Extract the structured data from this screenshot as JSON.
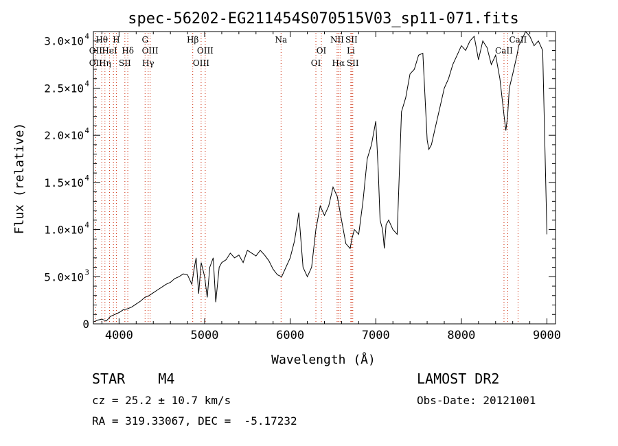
{
  "chart_data": {
    "type": "line",
    "title": "spec-56202-EG211454S070515V03_sp11-071.fits",
    "xlabel": "Wavelength (Å)",
    "ylabel": "Flux (relative)",
    "xlim": [
      3700,
      9100
    ],
    "ylim": [
      0,
      31000
    ],
    "x_ticks": [
      4000,
      5000,
      6000,
      7000,
      8000,
      9000
    ],
    "x_tick_labels": [
      "4000",
      "5000",
      "6000",
      "7000",
      "8000",
      "9000"
    ],
    "y_ticks": [
      {
        "value": 0,
        "mantissa": "0",
        "exp": ""
      },
      {
        "value": 5000,
        "mantissa": "5.0×10",
        "exp": "3"
      },
      {
        "value": 10000,
        "mantissa": "1.0×10",
        "exp": "4"
      },
      {
        "value": 15000,
        "mantissa": "1.5×10",
        "exp": "4"
      },
      {
        "value": 20000,
        "mantissa": "2.0×10",
        "exp": "4"
      },
      {
        "value": 25000,
        "mantissa": "2.5×10",
        "exp": "4"
      },
      {
        "value": 30000,
        "mantissa": "3.0×10",
        "exp": "4"
      }
    ],
    "grid": false,
    "series": [
      {
        "x": [
          3700,
          3750,
          3800,
          3850,
          3900,
          3950,
          4000,
          4050,
          4100,
          4150,
          4200,
          4250,
          4300,
          4350,
          4400,
          4450,
          4500,
          4550,
          4600,
          4650,
          4700,
          4750,
          4800,
          4850,
          4880,
          4900,
          4930,
          4960,
          5000,
          5030,
          5060,
          5100,
          5130,
          5170,
          5200,
          5250,
          5300,
          5350,
          5400,
          5450,
          5500,
          5550,
          5600,
          5650,
          5700,
          5750,
          5800,
          5850,
          5900,
          5950,
          6000,
          6050,
          6080,
          6100,
          6150,
          6200,
          6250,
          6300,
          6350,
          6400,
          6450,
          6500,
          6550,
          6600,
          6650,
          6700,
          6720,
          6750,
          6800,
          6850,
          6900,
          6950,
          7000,
          7030,
          7050,
          7080,
          7100,
          7120,
          7150,
          7200,
          7250,
          7300,
          7350,
          7400,
          7450,
          7500,
          7550,
          7600,
          7620,
          7650,
          7700,
          7750,
          7800,
          7850,
          7900,
          7950,
          8000,
          8050,
          8100,
          8150,
          8200,
          8250,
          8300,
          8350,
          8400,
          8450,
          8500,
          8520,
          8540,
          8560,
          8600,
          8650,
          8670,
          8700,
          8750,
          8800,
          8850,
          8900,
          8950,
          9000
        ],
        "y": [
          200,
          400,
          500,
          300,
          800,
          1000,
          1200,
          1500,
          1600,
          1800,
          2100,
          2400,
          2800,
          3000,
          3300,
          3600,
          3900,
          4200,
          4400,
          4800,
          5000,
          5300,
          5200,
          4200,
          6000,
          7000,
          3200,
          6500,
          5000,
          2800,
          6000,
          7000,
          2300,
          6000,
          6500,
          6800,
          7500,
          7000,
          7300,
          6500,
          7800,
          7500,
          7200,
          7800,
          7300,
          6700,
          5800,
          5200,
          5000,
          6000,
          7000,
          8800,
          10500,
          11800,
          6000,
          5000,
          6000,
          10000,
          12500,
          11500,
          12500,
          14500,
          13500,
          11000,
          8500,
          8000,
          9000,
          10000,
          9500,
          13000,
          17500,
          19000,
          21500,
          16000,
          11000,
          10000,
          8000,
          10500,
          11000,
          10000,
          9500,
          22500,
          24000,
          26500,
          27000,
          28500,
          28700,
          19500,
          18500,
          19000,
          21000,
          23000,
          25000,
          26000,
          27500,
          28500,
          29500,
          29000,
          30000,
          30500,
          28000,
          30000,
          29300,
          27500,
          28500,
          26000,
          22000,
          20500,
          22000,
          25000,
          26500,
          28500,
          29500,
          30000,
          31000,
          30500,
          29500,
          30000,
          29000,
          9500
        ]
      }
    ],
    "line_annotations": [
      {
        "wavelength": 3727,
        "labels": [
          "",
          "OII",
          "OII"
        ]
      },
      {
        "wavelength": 3798,
        "labels": [
          "Hθ",
          "",
          ""
        ]
      },
      {
        "wavelength": 3835,
        "labels": [
          "",
          "",
          "Hη"
        ]
      },
      {
        "wavelength": 3889,
        "labels": [
          "",
          "HeI",
          ""
        ]
      },
      {
        "wavelength": 3934,
        "labels": [
          "",
          "",
          ""
        ]
      },
      {
        "wavelength": 3968,
        "labels": [
          "H",
          "",
          ""
        ]
      },
      {
        "wavelength": 4068,
        "labels": [
          "",
          "",
          "SII"
        ]
      },
      {
        "wavelength": 4102,
        "labels": [
          "",
          "Hδ",
          ""
        ]
      },
      {
        "wavelength": 4304,
        "labels": [
          "G",
          "",
          ""
        ]
      },
      {
        "wavelength": 4340,
        "labels": [
          "",
          "",
          "Hγ"
        ]
      },
      {
        "wavelength": 4363,
        "labels": [
          "",
          "OIII",
          ""
        ]
      },
      {
        "wavelength": 4861,
        "labels": [
          "Hβ",
          "",
          ""
        ]
      },
      {
        "wavelength": 4959,
        "labels": [
          "",
          "",
          "OIII"
        ]
      },
      {
        "wavelength": 5007,
        "labels": [
          "",
          "OIII",
          ""
        ]
      },
      {
        "wavelength": 5893,
        "labels": [
          "Na",
          "",
          ""
        ]
      },
      {
        "wavelength": 6300,
        "labels": [
          "",
          "",
          "OI"
        ]
      },
      {
        "wavelength": 6364,
        "labels": [
          "",
          "OI",
          ""
        ]
      },
      {
        "wavelength": 6548,
        "labels": [
          "NII",
          "",
          ""
        ]
      },
      {
        "wavelength": 6563,
        "labels": [
          "",
          "",
          "Hα"
        ]
      },
      {
        "wavelength": 6583,
        "labels": [
          "",
          "",
          ""
        ]
      },
      {
        "wavelength": 6708,
        "labels": [
          "",
          "Li",
          ""
        ]
      },
      {
        "wavelength": 6716,
        "labels": [
          "SII",
          "",
          ""
        ]
      },
      {
        "wavelength": 6731,
        "labels": [
          "",
          "",
          "SII"
        ]
      },
      {
        "wavelength": 8498,
        "labels": [
          "",
          "CaII",
          ""
        ]
      },
      {
        "wavelength": 8542,
        "labels": [
          "",
          "",
          ""
        ]
      },
      {
        "wavelength": 8662,
        "labels": [
          "CaII",
          "",
          ""
        ]
      }
    ],
    "colors": {
      "spectrum": "#000000",
      "axes": "#000000",
      "line_markers": "#cc2200"
    }
  },
  "info": {
    "classification": "STAR    M4",
    "survey": "LAMOST DR2",
    "cz": "cz = 25.2 ± 10.7 km/s",
    "obs_date": "Obs-Date: 20121001",
    "coords": "RA = 319.33067, DEC =  -5.17232"
  }
}
